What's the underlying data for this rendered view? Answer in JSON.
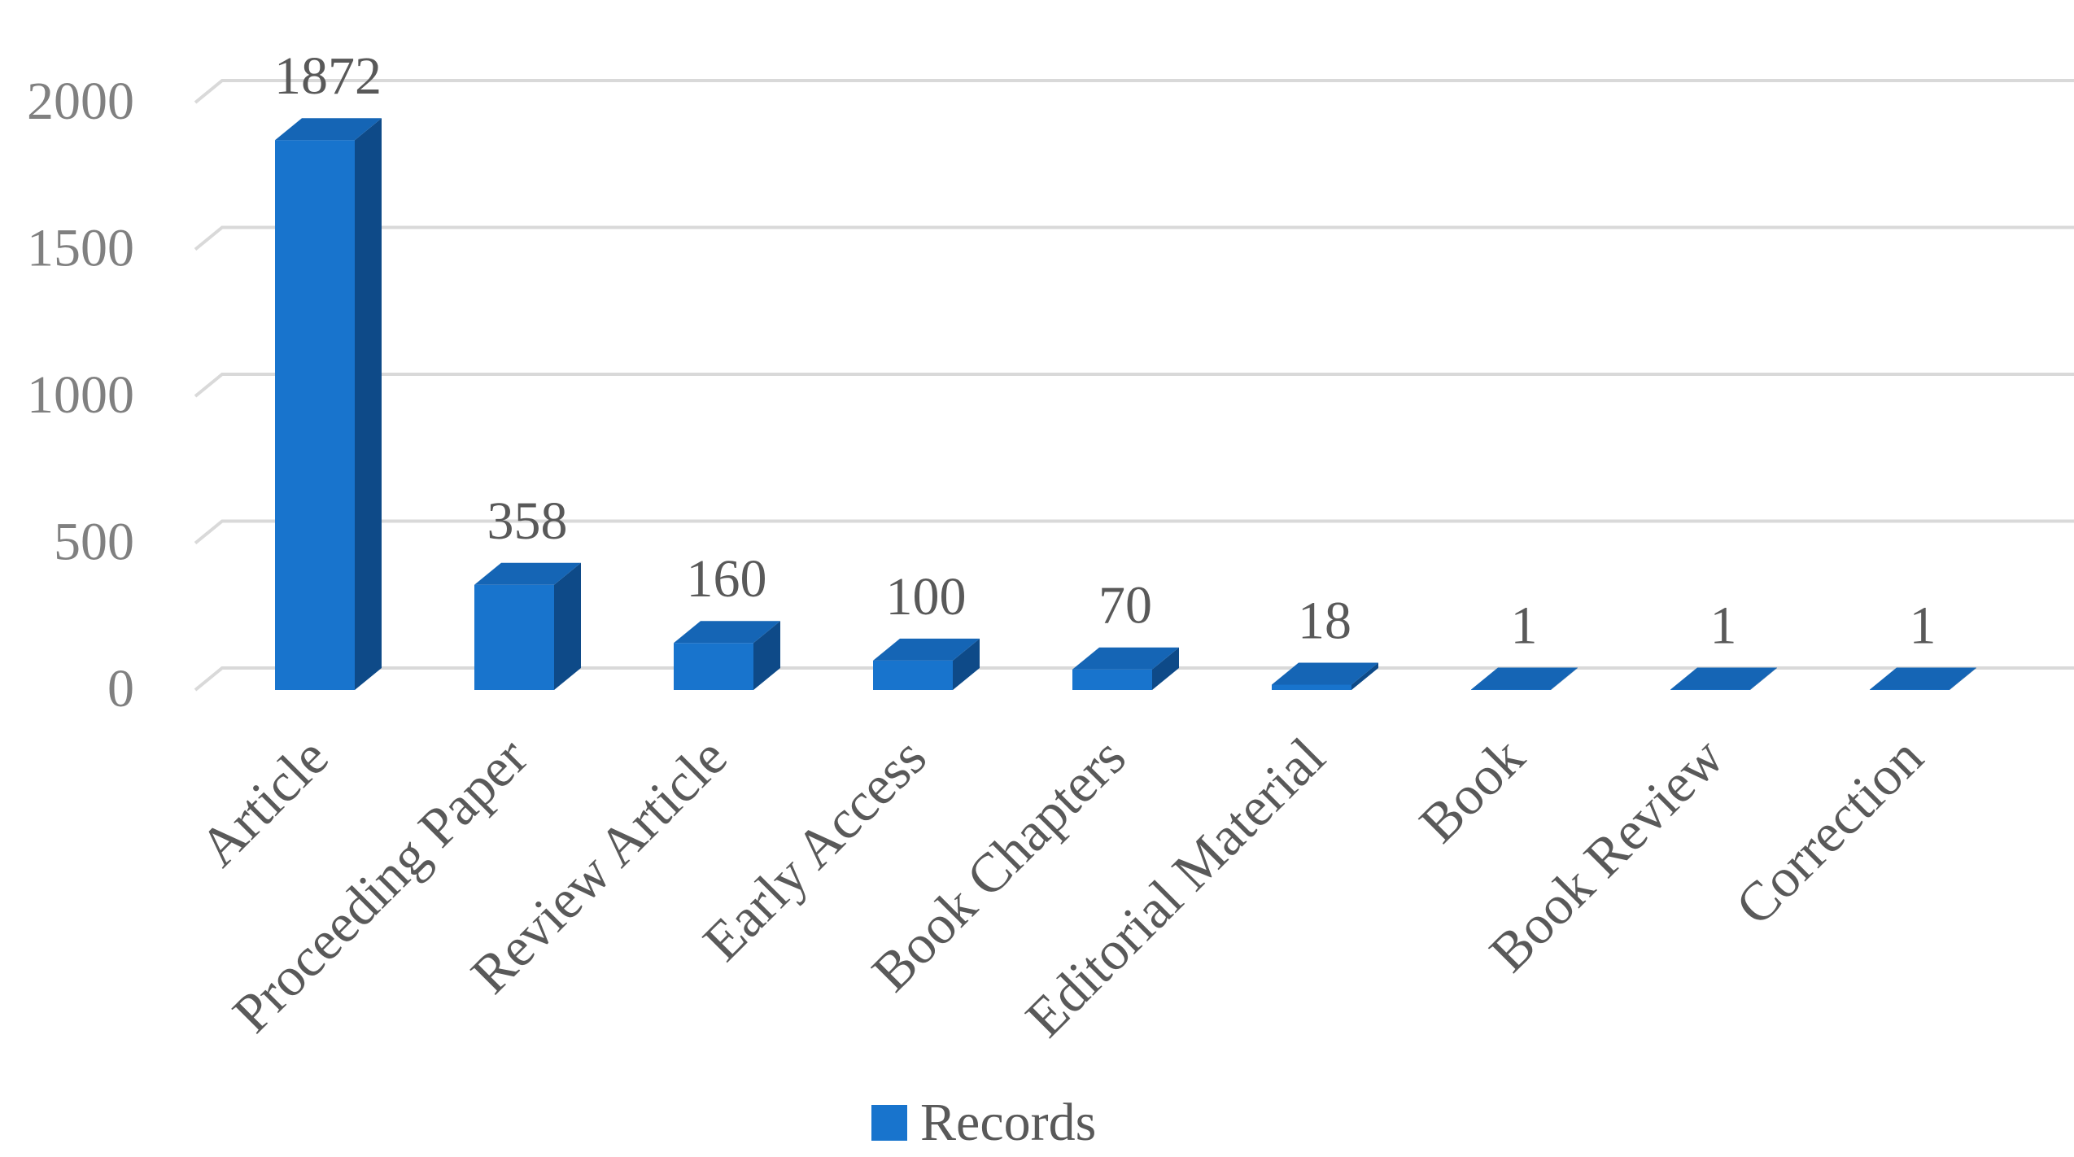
{
  "chart_data": {
    "type": "bar",
    "style": "3d-column",
    "categories": [
      "Article",
      "Proceeding Paper",
      "Review Article",
      "Early Access",
      "Book Chapters",
      "Editorial Material",
      "Book",
      "Book Review",
      "Correction"
    ],
    "series": [
      {
        "name": "Records",
        "values": [
          1872,
          358,
          160,
          100,
          70,
          18,
          1,
          1,
          1
        ]
      }
    ],
    "data_labels": [
      "1872",
      "358",
      "160",
      "100",
      "70",
      "18",
      "1",
      "1",
      "1"
    ],
    "ylim": [
      0,
      2000
    ],
    "yticks": [
      "0",
      "500",
      "1000",
      "1500",
      "2000"
    ],
    "grid": true,
    "legend": "bottom-center",
    "colors": {
      "bar_front": "#1874CD",
      "bar_side": "#0E4A88",
      "bar_top": "#1565B5",
      "grid": "#D9D9D9"
    }
  },
  "legend": {
    "label": "Records"
  }
}
